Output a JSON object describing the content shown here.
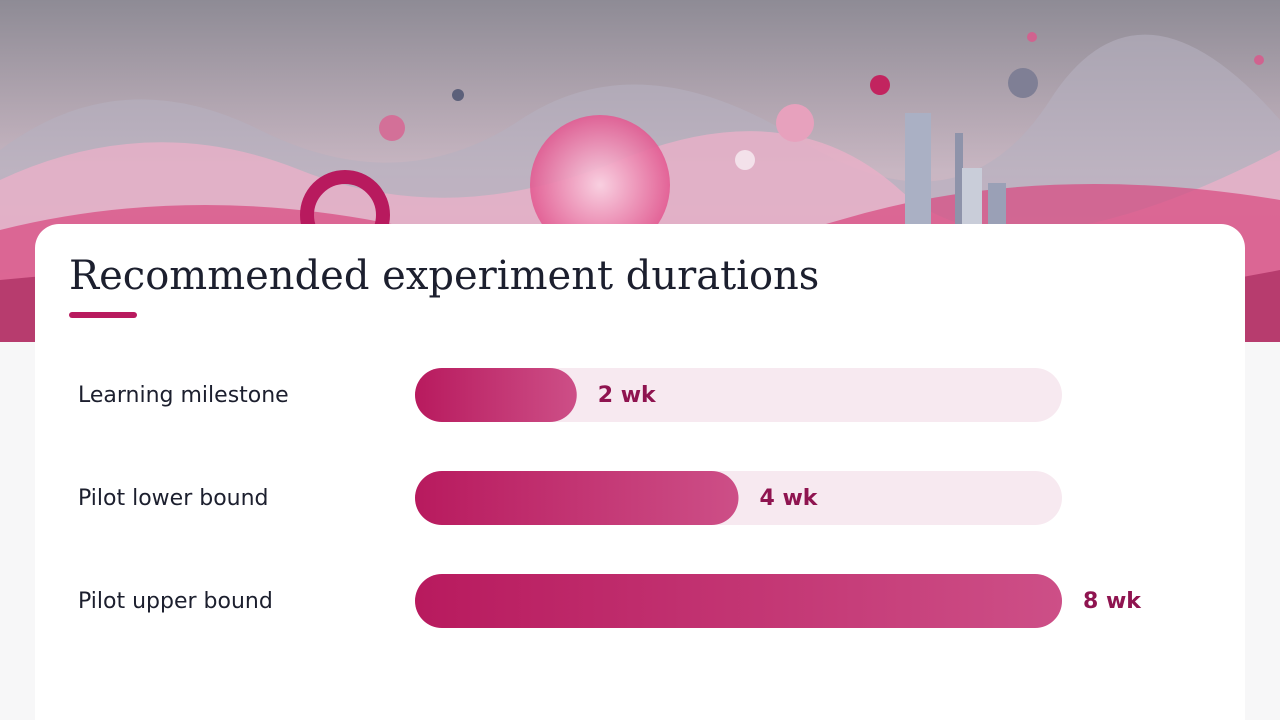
{
  "chart_data": {
    "type": "bar",
    "orientation": "horizontal",
    "title": "Recommended experiment durations",
    "categories": [
      "Learning milestone",
      "Pilot lower bound",
      "Pilot upper bound"
    ],
    "values": [
      2,
      4,
      8
    ],
    "value_labels": [
      "2 wk",
      "4 wk",
      "8 wk"
    ],
    "xlim": [
      0,
      8
    ],
    "color": "#b81a5e"
  }
}
